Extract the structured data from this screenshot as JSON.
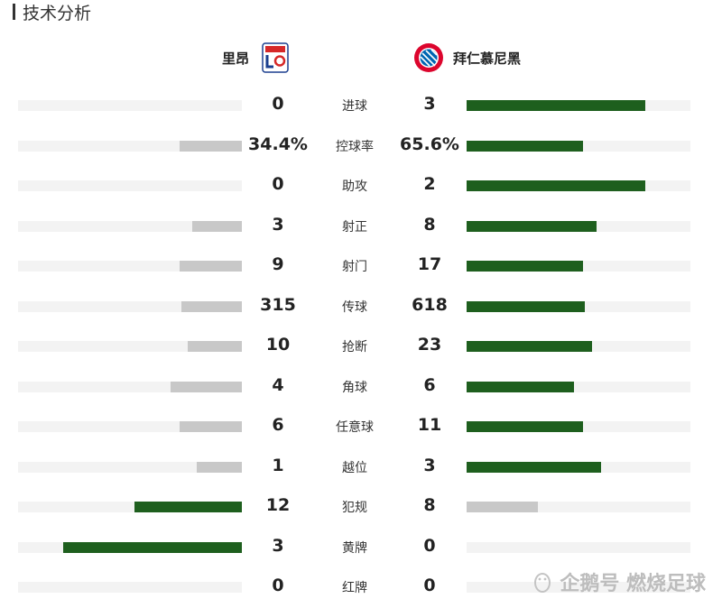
{
  "section_title": "技术分析",
  "teams": {
    "home": {
      "name": "里昂",
      "logo_icon": "olympique-lyonnais-crest"
    },
    "away": {
      "name": "拜仁慕尼黑",
      "logo_icon": "fc-bayern-munchen-crest"
    }
  },
  "colors": {
    "winner": "#1e5f1e",
    "loser": "#c8c8c8",
    "track": "#f3f3f3"
  },
  "stats": [
    {
      "label": "进球",
      "home": "0",
      "away": "3",
      "home_share": 0,
      "away_share": 0.8
    },
    {
      "label": "控球率",
      "home": "34.4%",
      "away": "65.6%",
      "home_share": 0.28,
      "away_share": 0.52
    },
    {
      "label": "助攻",
      "home": "0",
      "away": "2",
      "home_share": 0,
      "away_share": 0.8
    },
    {
      "label": "射正",
      "home": "3",
      "away": "8",
      "home_share": 0.22,
      "away_share": 0.58
    },
    {
      "label": "射门",
      "home": "9",
      "away": "17",
      "home_share": 0.28,
      "away_share": 0.52
    },
    {
      "label": "传球",
      "home": "315",
      "away": "618",
      "home_share": 0.27,
      "away_share": 0.53
    },
    {
      "label": "抢断",
      "home": "10",
      "away": "23",
      "home_share": 0.24,
      "away_share": 0.56
    },
    {
      "label": "角球",
      "home": "4",
      "away": "6",
      "home_share": 0.32,
      "away_share": 0.48
    },
    {
      "label": "任意球",
      "home": "6",
      "away": "11",
      "home_share": 0.28,
      "away_share": 0.52
    },
    {
      "label": "越位",
      "home": "1",
      "away": "3",
      "home_share": 0.2,
      "away_share": 0.6
    },
    {
      "label": "犯规",
      "home": "12",
      "away": "8",
      "home_share": 0.48,
      "away_share": 0.32
    },
    {
      "label": "黄牌",
      "home": "3",
      "away": "0",
      "home_share": 0.8,
      "away_share": 0
    },
    {
      "label": "红牌",
      "home": "0",
      "away": "0",
      "home_share": 0,
      "away_share": 0
    }
  ],
  "watermark": "企鹅号 燃烧足球"
}
